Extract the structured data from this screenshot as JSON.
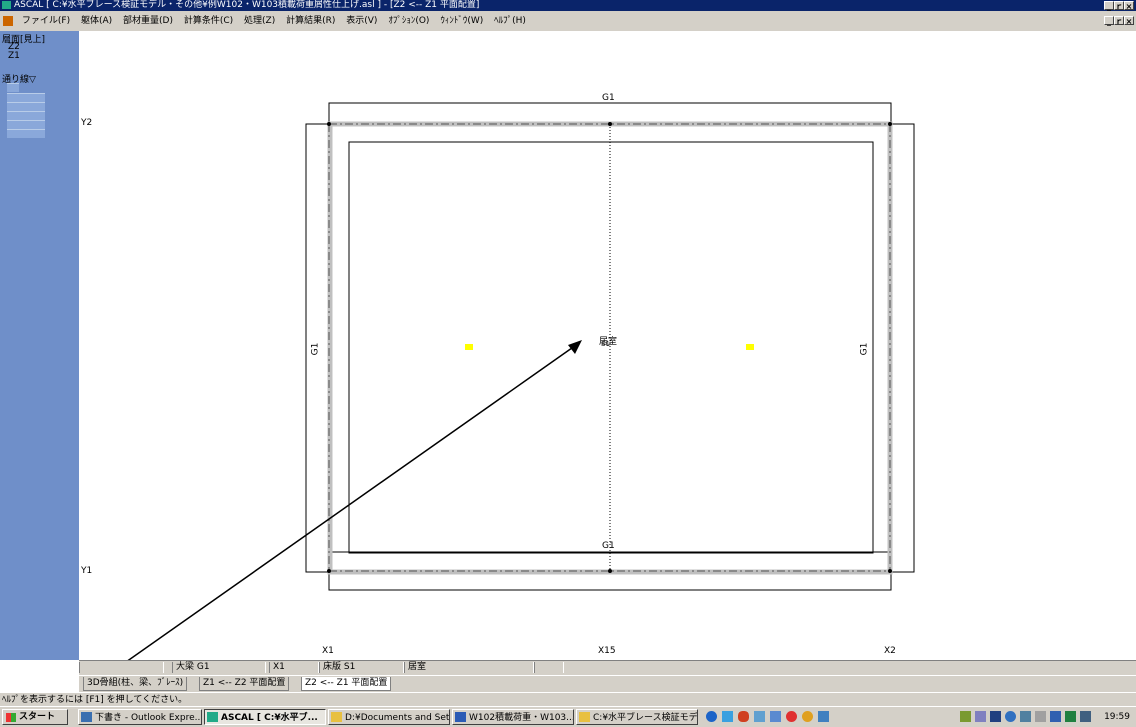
{
  "titlebar": {
    "title": "ASCAL [ C:¥水平ブレース検証モデル・その他¥例W102・W103積載荷重屑性仕上げ.asl ] - [Z2 <-- Z1 平面配置]",
    "buttons": [
      "_",
      "ｒ",
      "×"
    ]
  },
  "menubar": {
    "items": [
      "ファイル(F)",
      "躯体(A)",
      "部材重量(D)",
      "計算条件(C)",
      "処理(Z)",
      "計算結果(R)",
      "表示(V)",
      "ｵﾌﾟｼｮﾝ(O)",
      "ｳｨﾝﾄﾞｳ(W)",
      "ﾍﾙﾌﾟ(H)"
    ]
  },
  "left_panel": {
    "section_floor": "層面[見上]",
    "floors": [
      "Z2",
      "Z1"
    ],
    "section_grid": "通り線▽"
  },
  "canvas": {
    "grid_y_labels": [
      "Y2",
      "Y1"
    ],
    "grid_x_labels": [
      "X1",
      "X15",
      "X2"
    ],
    "beam_top": "G1",
    "beam_bottom": "G1",
    "beam_left": "G1",
    "beam_right": "G1",
    "room_label": "居室",
    "slab_label": "S1",
    "accent_yellow": "#ffff00"
  },
  "status_row": {
    "cells": [
      "",
      "大梁 G1",
      "X1",
      "床版 S1",
      "居室",
      ""
    ]
  },
  "tabs": [
    {
      "label": "3D骨組(柱、梁、ﾌﾞﾚｰｽ)",
      "active": false
    },
    {
      "label": "Z1 <-- Z2 平面配置",
      "active": false
    },
    {
      "label": "Z2 <-- Z1 平面配置",
      "active": true
    }
  ],
  "helpbar": {
    "text": "ﾍﾙﾌﾟを表示するには [F1] を押してください。"
  },
  "taskbar": {
    "start": "スタート",
    "buttons": [
      {
        "label": "下書き - Outlook Expre...",
        "active": false
      },
      {
        "label": "ASCAL [ C:¥水平ブ...",
        "active": true
      },
      {
        "label": "D:¥Documents and Sett...",
        "active": false
      },
      {
        "label": "W102積載荷重・W103...",
        "active": false
      },
      {
        "label": "C:¥水平ブレース検証モデ...",
        "active": false
      }
    ],
    "clock": "19:59"
  }
}
